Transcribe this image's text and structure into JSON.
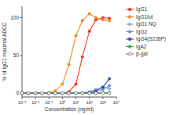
{
  "chart_data": {
    "type": "line",
    "x_label": "Concentration (ng/ml)",
    "y_label": "% of IgG1 maximal ADCC",
    "log": "x",
    "legend": "top-right",
    "marker": "circle",
    "x": [
      0.001,
      0.003,
      0.01,
      0.03,
      0.1,
      0.3,
      1,
      3,
      10,
      30,
      100,
      300,
      1000,
      3000
    ],
    "xlim": [
      0.001,
      10000
    ],
    "xticks": [
      {
        "value": 0.001,
        "label": "10⁻³"
      },
      {
        "value": 0.01,
        "label": "10⁻²"
      },
      {
        "value": 0.1,
        "label": "10⁻¹"
      },
      {
        "value": 1,
        "label": "10⁰"
      },
      {
        "value": 10,
        "label": "10¹"
      },
      {
        "value": 100,
        "label": "10²"
      },
      {
        "value": 1000,
        "label": "10³"
      },
      {
        "value": 10000,
        "label": "10⁴"
      }
    ],
    "ylim": [
      -5,
      115
    ],
    "yticks": [
      0,
      50,
      100
    ],
    "series": [
      {
        "name": "IgG1",
        "color": "#e8392a",
        "values": [
          0,
          0,
          0,
          0,
          0,
          0,
          0,
          2,
          12,
          48,
          82,
          97,
          100,
          99
        ]
      },
      {
        "name": "IgG1fut",
        "color": "#f08a24",
        "values": [
          0,
          0,
          0,
          0,
          1,
          3,
          12,
          38,
          76,
          96,
          105,
          100,
          97,
          96
        ]
      },
      {
        "name": "IgG1 NQ",
        "color": "#8fb0e0",
        "values": [
          0,
          0,
          0,
          0,
          0,
          0,
          0,
          0,
          0,
          1,
          2,
          5,
          8,
          6
        ]
      },
      {
        "name": "IgG2",
        "color": "#7d8fbf",
        "values": [
          0,
          0,
          0,
          0,
          0,
          0,
          0,
          0,
          0,
          0,
          1,
          2,
          5,
          10
        ]
      },
      {
        "name": "IgG4(S228P)",
        "color": "#2a4a9c",
        "values": [
          0,
          0,
          0,
          0,
          0,
          0,
          0,
          0,
          0,
          0,
          1,
          3,
          8,
          19
        ]
      },
      {
        "name": "IgA2",
        "color": "#3aa84a",
        "values": [
          0,
          0,
          0,
          0,
          0,
          0,
          0,
          0,
          0,
          0,
          0,
          0,
          1,
          1
        ]
      },
      {
        "name": "β-gal",
        "color": "#777777",
        "marker": "open_circle",
        "values": [
          0,
          0,
          0,
          0,
          0,
          0,
          0,
          0,
          0,
          0,
          0,
          0,
          0,
          0
        ]
      }
    ]
  }
}
